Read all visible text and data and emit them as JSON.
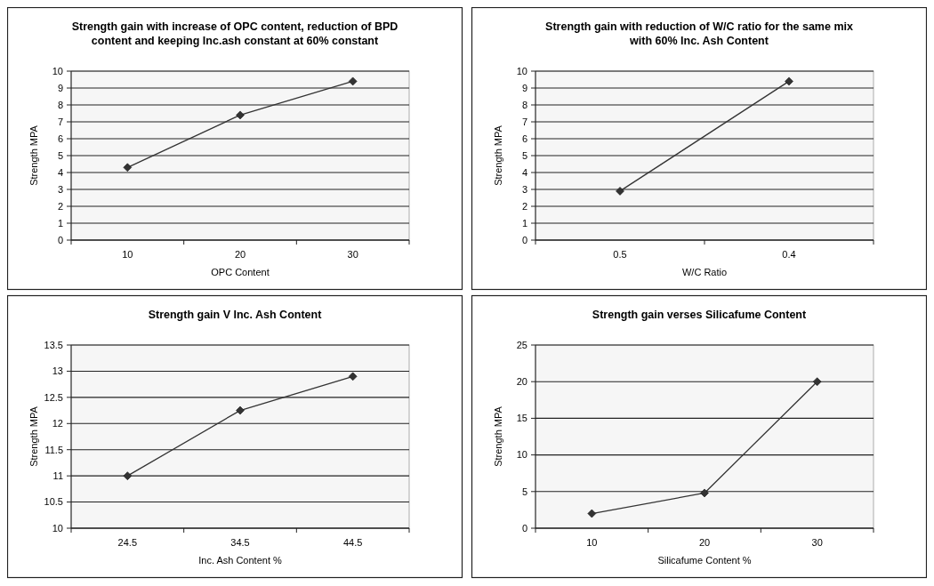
{
  "chart_data": [
    {
      "type": "line",
      "title": "Strength gain with increase of OPC content, reduction of BPD content and keeping Inc.ash constant at 60% constant",
      "xlabel": "OPC Content",
      "ylabel": "Strength MPA",
      "categories": [
        "10",
        "20",
        "30"
      ],
      "series": [
        {
          "color": "#333333",
          "values": [
            4.3,
            7.4,
            9.4
          ]
        }
      ],
      "ylim": [
        0,
        10
      ],
      "yticks": [
        0,
        1,
        2,
        3,
        4,
        5,
        6,
        7,
        8,
        9,
        10
      ],
      "grid": "y",
      "marker": "diamond"
    },
    {
      "type": "line",
      "title": "Strength gain with reduction of W/C ratio for the same mix with 60% Inc. Ash Content",
      "xlabel": "W/C Ratio",
      "ylabel": "Strength MPA",
      "categories": [
        "0.5",
        "0.4"
      ],
      "series": [
        {
          "color": "#333333",
          "values": [
            2.9,
            9.4
          ]
        }
      ],
      "ylim": [
        0,
        10
      ],
      "yticks": [
        0,
        1,
        2,
        3,
        4,
        5,
        6,
        7,
        8,
        9,
        10
      ],
      "grid": "y",
      "marker": "diamond"
    },
    {
      "type": "line",
      "title": "Strength gain V Inc. Ash Content",
      "xlabel": "Inc. Ash Content %",
      "ylabel": "Strength MPA",
      "categories": [
        "24.5",
        "34.5",
        "44.5"
      ],
      "series": [
        {
          "color": "#333333",
          "values": [
            11.0,
            12.25,
            12.9
          ]
        }
      ],
      "ylim": [
        10,
        13.5
      ],
      "yticks": [
        10,
        10.5,
        11,
        11.5,
        12,
        12.5,
        13,
        13.5
      ],
      "grid": "y",
      "marker": "diamond"
    },
    {
      "type": "line",
      "title": "Strength gain verses Silicafume Content",
      "xlabel": "Silicafume Content %",
      "ylabel": "Strength MPA",
      "categories": [
        "10",
        "20",
        "30"
      ],
      "series": [
        {
          "color": "#333333",
          "values": [
            2,
            4.8,
            20
          ]
        }
      ],
      "ylim": [
        0,
        25
      ],
      "yticks": [
        0,
        5,
        10,
        15,
        20,
        25
      ],
      "grid": "y",
      "marker": "diamond"
    }
  ]
}
